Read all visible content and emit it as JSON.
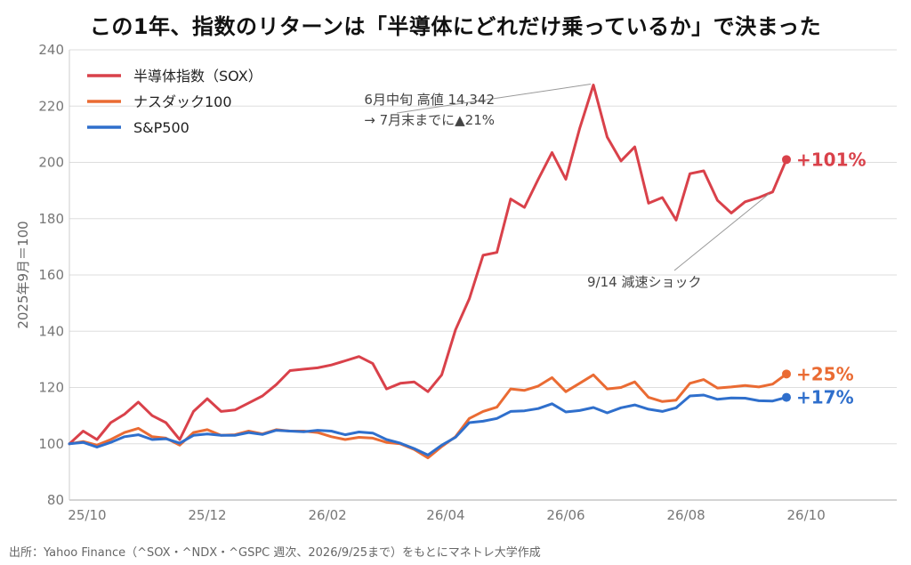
{
  "title": "この1年、指数のリターンは「半導体にどれだけ乗っているか」で決まった",
  "source": "出所：Yahoo Finance（^SOX・^NDX・^GSPC 週次、2026/9/25まで）をもとにマネトレ大学作成",
  "chart_data": {
    "type": "line",
    "ylabel": "2025年9月＝100",
    "ylim": [
      80,
      240
    ],
    "yticks": [
      80,
      100,
      120,
      140,
      160,
      180,
      200,
      220,
      240
    ],
    "xlim": [
      "2025-09-26",
      "2026-11-20"
    ],
    "xticks": [
      {
        "label": "25/10",
        "date": "2025-10-05"
      },
      {
        "label": "25/12",
        "date": "2025-12-05"
      },
      {
        "label": "26/02",
        "date": "2026-02-04"
      },
      {
        "label": "26/04",
        "date": "2026-04-05"
      },
      {
        "label": "26/06",
        "date": "2026-06-05"
      },
      {
        "label": "26/08",
        "date": "2026-08-05"
      },
      {
        "label": "26/10",
        "date": "2026-10-05"
      }
    ],
    "grid": "horizontal",
    "legend_position": "top-left",
    "x": [
      "2025-09-26",
      "2025-10-03",
      "2025-10-10",
      "2025-10-17",
      "2025-10-24",
      "2025-10-31",
      "2025-11-07",
      "2025-11-14",
      "2025-11-21",
      "2025-11-28",
      "2025-12-05",
      "2025-12-12",
      "2025-12-19",
      "2025-12-26",
      "2026-01-02",
      "2026-01-09",
      "2026-01-16",
      "2026-01-23",
      "2026-01-30",
      "2026-02-06",
      "2026-02-13",
      "2026-02-20",
      "2026-02-27",
      "2026-03-06",
      "2026-03-13",
      "2026-03-20",
      "2026-03-27",
      "2026-04-03",
      "2026-04-10",
      "2026-04-17",
      "2026-04-24",
      "2026-05-01",
      "2026-05-08",
      "2026-05-15",
      "2026-05-22",
      "2026-05-29",
      "2026-06-05",
      "2026-06-12",
      "2026-06-19",
      "2026-06-26",
      "2026-07-03",
      "2026-07-10",
      "2026-07-17",
      "2026-07-24",
      "2026-07-31",
      "2026-08-07",
      "2026-08-14",
      "2026-08-21",
      "2026-08-28",
      "2026-09-04",
      "2026-09-11",
      "2026-09-18",
      "2026-09-25"
    ],
    "series": [
      {
        "name": "半導体指数（SOX）",
        "color": "#d9414a",
        "values": [
          100,
          104.5,
          101.5,
          107.5,
          110.5,
          114.8,
          110,
          107.5,
          101.5,
          111.5,
          116,
          111.5,
          112,
          114.5,
          117,
          121,
          126,
          126.5,
          127,
          128,
          129.5,
          131,
          128.5,
          119.5,
          121.5,
          122,
          118.5,
          124.5,
          140.5,
          151.5,
          167,
          168,
          187,
          184,
          194,
          203.5,
          194,
          212,
          227.5,
          209,
          200.5,
          205.5,
          185.5,
          187.5,
          179.5,
          196,
          197,
          186.5,
          182,
          186,
          187.5,
          189.5,
          201
        ]
      },
      {
        "name": "ナスダック100",
        "color": "#ea6b33",
        "values": [
          100,
          100.8,
          99.5,
          101.5,
          104,
          105.5,
          102.5,
          102,
          99.5,
          104,
          105,
          103,
          103.2,
          104.5,
          103.5,
          105,
          104.5,
          104.5,
          104,
          102.5,
          101.5,
          102.3,
          102,
          100.5,
          100,
          98,
          95,
          99,
          102.5,
          109,
          111.5,
          113,
          119.5,
          119,
          120.5,
          123.5,
          118.5,
          121.5,
          124.5,
          119.5,
          120,
          122,
          116.5,
          115,
          115.5,
          121.5,
          122.8,
          119.8,
          120.2,
          120.7,
          120.2,
          121.2,
          124.8
        ]
      },
      {
        "name": "S&P500",
        "color": "#2f6fcc",
        "values": [
          100,
          100.5,
          98.8,
          100.5,
          102.5,
          103.2,
          101.5,
          101.8,
          100.2,
          103,
          103.5,
          103,
          103,
          104,
          103.3,
          104.8,
          104.5,
          104.3,
          104.8,
          104.5,
          103.2,
          104.2,
          103.8,
          101.5,
          100.2,
          98.3,
          96,
          99.5,
          102.3,
          107.5,
          108,
          109,
          111.5,
          111.7,
          112.5,
          114.2,
          111.3,
          111.8,
          112.9,
          111,
          112.8,
          113.8,
          112.3,
          111.5,
          112.8,
          117,
          117.3,
          115.8,
          116.3,
          116.2,
          115.3,
          115.2,
          116.5
        ]
      }
    ],
    "end_labels": [
      "+101%",
      "+25%",
      "+17%"
    ],
    "annotations": [
      {
        "lines": [
          "6月中旬 高値 14,342",
          "→ 7月末までに▲21%"
        ],
        "date": "2026-06-19",
        "value": 227.5
      },
      {
        "text": "9/14 減速ショック",
        "date": "2026-09-18",
        "value": 189.5
      }
    ]
  }
}
